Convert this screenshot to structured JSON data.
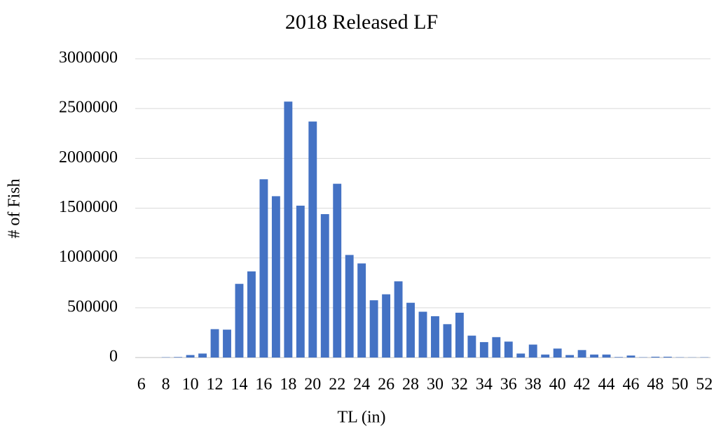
{
  "chart_data": {
    "type": "bar",
    "title": "2018 Released LF",
    "x_label": "TL (in)",
    "y_label": "# of Fish",
    "categories": [
      "6",
      null,
      "8",
      null,
      "10",
      null,
      "12",
      null,
      "14",
      null,
      "16",
      null,
      "18",
      null,
      "20",
      null,
      "22",
      null,
      "24",
      null,
      "26",
      null,
      "28",
      null,
      "30",
      null,
      "32",
      null,
      "34",
      null,
      "36",
      null,
      "38",
      null,
      "40",
      null,
      "42",
      null,
      "44",
      null,
      "46",
      null,
      "48",
      null,
      "50",
      null,
      "52"
    ],
    "values": [
      0,
      0,
      3000,
      5000,
      25000,
      40000,
      285000,
      280000,
      740000,
      865000,
      1790000,
      1620000,
      2570000,
      1525000,
      2370000,
      1440000,
      1745000,
      1030000,
      945000,
      575000,
      635000,
      765000,
      550000,
      460000,
      415000,
      335000,
      450000,
      220000,
      155000,
      205000,
      160000,
      40000,
      130000,
      30000,
      90000,
      25000,
      75000,
      30000,
      30000,
      5000,
      20000,
      3000,
      8000,
      8000,
      3000,
      2000,
      3000
    ],
    "color": "#4472c4",
    "ylim": [
      0,
      3000000
    ],
    "yticks": [
      0,
      500000,
      1000000,
      1500000,
      2000000,
      2500000,
      3000000
    ],
    "grid": true
  }
}
